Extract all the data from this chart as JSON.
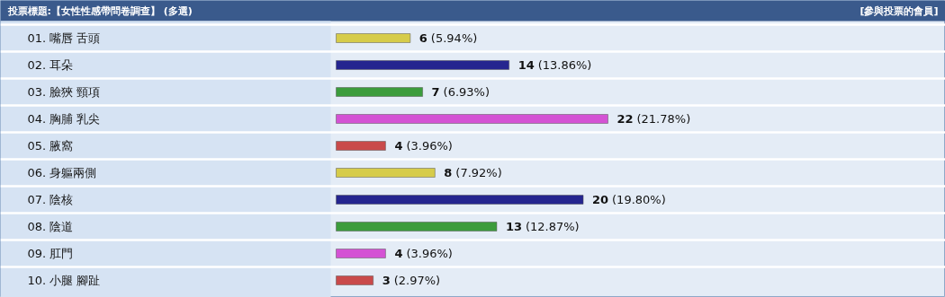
{
  "chart_data": {
    "type": "bar",
    "orientation": "horizontal",
    "title": "投票標題:【女性性感帶問卷調查】 (多選)",
    "annotations": [
      "[參與投票的會員]"
    ],
    "categories": [
      "01. 嘴唇 舌頭",
      "02. 耳朵",
      "03. 臉狹 頸項",
      "04. 胸脯 乳尖",
      "05. 腋窩",
      "06. 身軀兩側",
      "07. 陰核",
      "08. 陰道",
      "09. 肛門",
      "10. 小腿 腳趾"
    ],
    "values": [
      6,
      14,
      7,
      22,
      4,
      8,
      20,
      13,
      4,
      3
    ],
    "colors": [
      "#d6cc4a",
      "#25258f",
      "#3c9c3c",
      "#d452d4",
      "#c94a4a",
      "#d6cc4a",
      "#25258f",
      "#3c9c3c",
      "#d452d4",
      "#c94a4a"
    ],
    "value_labels": [
      "6 (5.94%)",
      "14 (13.86%)",
      "7 (6.93%)",
      "22 (21.78%)",
      "4 (3.96%)",
      "8 (7.92%)",
      "20 (19.80%)",
      "13 (12.87%)",
      "4 (3.96%)",
      "3 (2.97%)"
    ]
  }
}
